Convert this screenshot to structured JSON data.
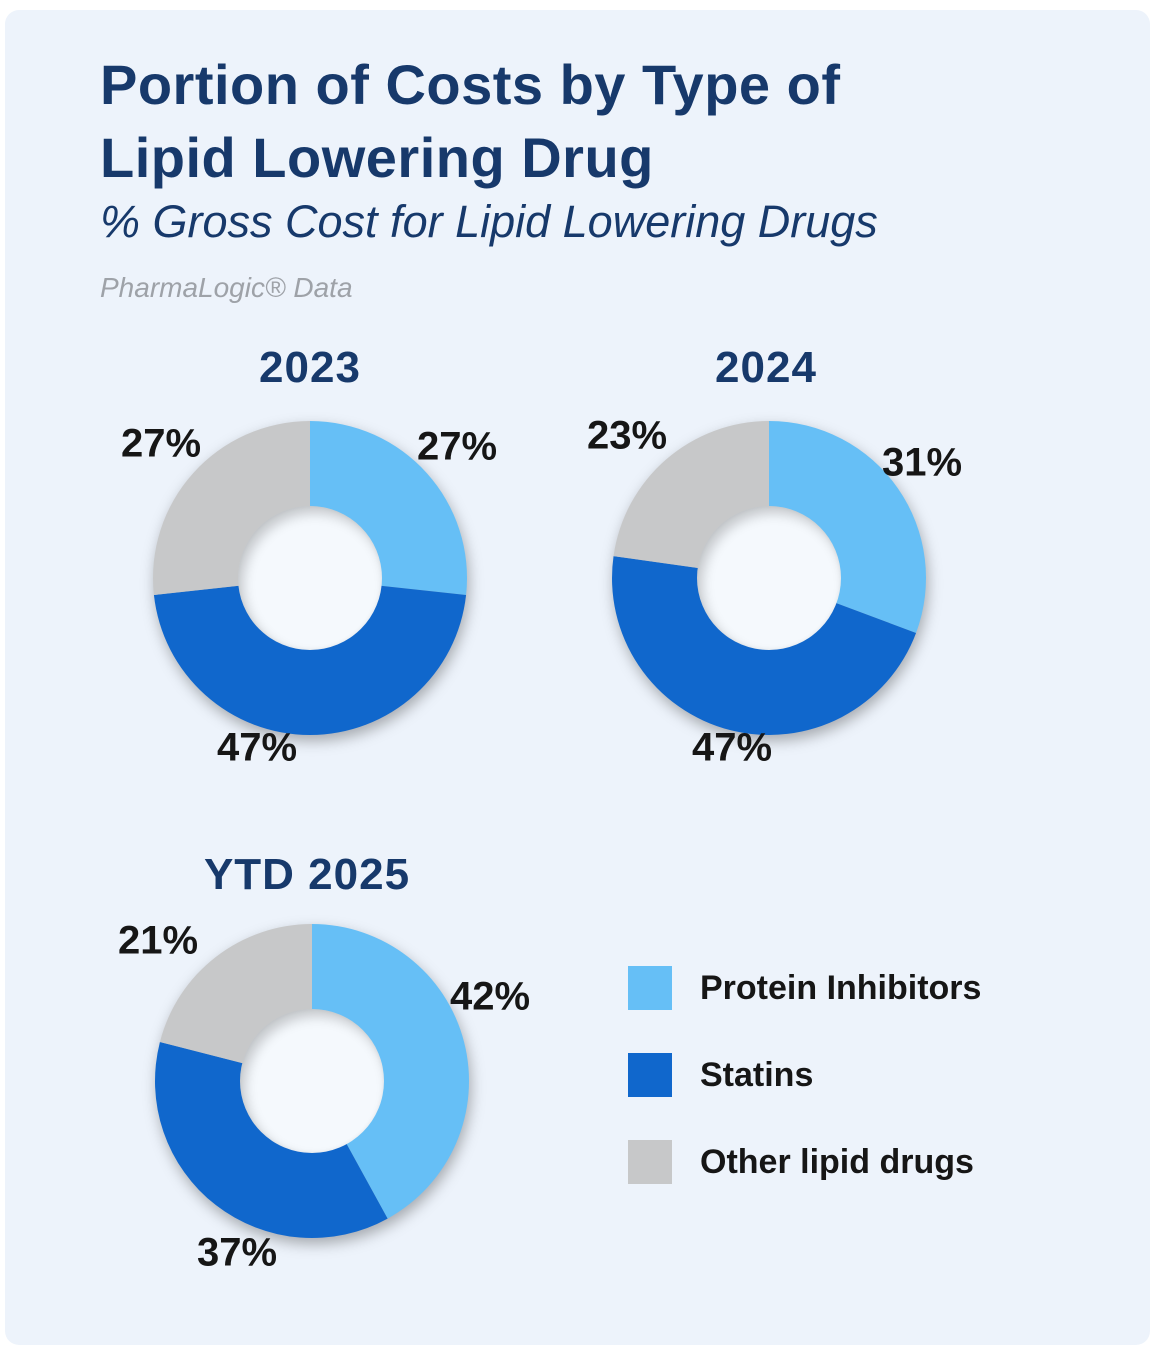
{
  "header": {
    "title_line1": "Portion of Costs by Type of",
    "title_line2": "Lipid Lowering Drug",
    "subtitle": "% Gross Cost for Lipid Lowering Drugs",
    "source": "PharmaLogic® Data"
  },
  "colors": {
    "frame": "#FFFFFF",
    "background": "#EDF3FB",
    "title_navy": "#17396B",
    "label_dark": "#161616",
    "source_gray": "#9EA2A8",
    "protein_inhibitors": "#66BFF6",
    "statins": "#1067CC",
    "other_lipid": "#C7C8C9",
    "donut_hole": "#F5F9FD"
  },
  "legend": {
    "items": [
      {
        "label": "Protein Inhibitors",
        "color_key": "protein_inhibitors"
      },
      {
        "label": "Statins",
        "color_key": "statins"
      },
      {
        "label": "Other lipid drugs",
        "color_key": "other_lipid"
      }
    ]
  },
  "chart_data": [
    {
      "type": "pie",
      "donut": true,
      "title": "2023",
      "categories": [
        "Protein Inhibitors",
        "Statins",
        "Other lipid drugs"
      ],
      "values": [
        27,
        47,
        27
      ],
      "labels": [
        "27%",
        "47%",
        "27%"
      ],
      "unit": "%",
      "start_angle_deg": 0,
      "direction": "clockwise"
    },
    {
      "type": "pie",
      "donut": true,
      "title": "2024",
      "categories": [
        "Protein Inhibitors",
        "Statins",
        "Other lipid drugs"
      ],
      "values": [
        31,
        47,
        23
      ],
      "labels": [
        "31%",
        "47%",
        "23%"
      ],
      "unit": "%",
      "start_angle_deg": 0,
      "direction": "clockwise"
    },
    {
      "type": "pie",
      "donut": true,
      "title": "YTD 2025",
      "categories": [
        "Protein Inhibitors",
        "Statins",
        "Other lipid drugs"
      ],
      "values": [
        42,
        37,
        21
      ],
      "labels": [
        "42%",
        "37%",
        "21%"
      ],
      "unit": "%",
      "start_angle_deg": 0,
      "direction": "clockwise"
    }
  ]
}
